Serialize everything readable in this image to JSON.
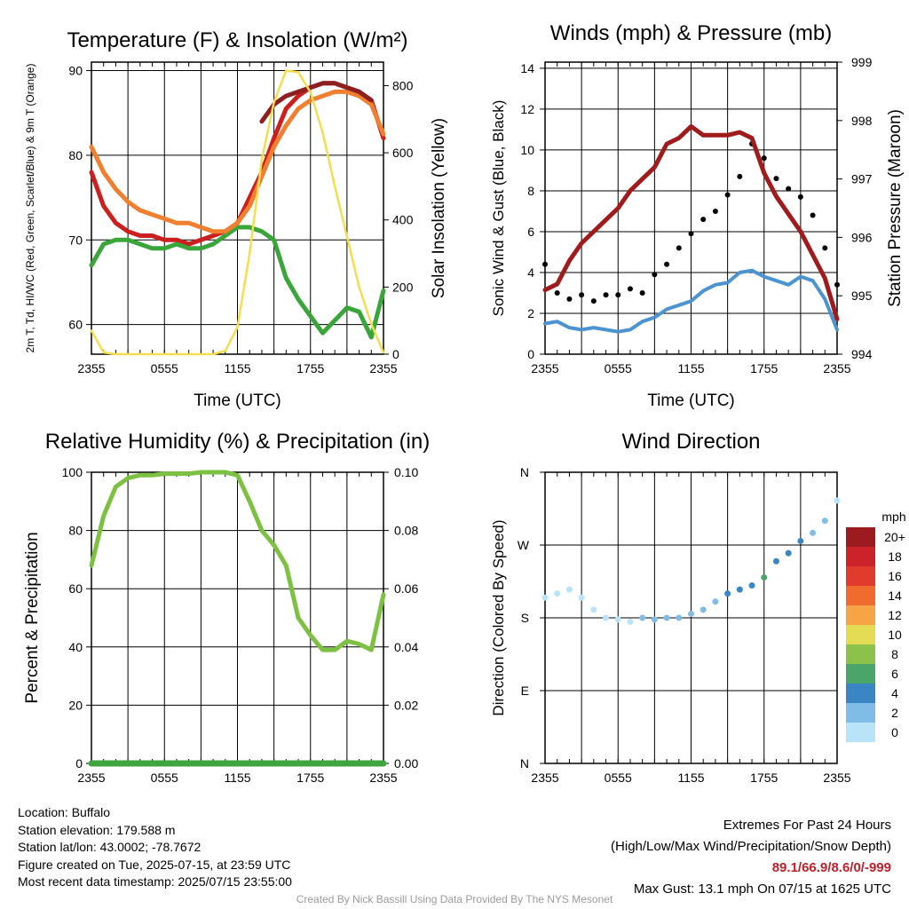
{
  "chart_data": [
    {
      "type": "line",
      "title": "Temperature (F) & Insolation (W/m²)",
      "xlabel": "Time (UTC)",
      "ylabel_left": "2m T, Td, HI/WC (Red, Green, Scarlet/Blue) & 9m T (Orange)",
      "ylabel_right": "Solar Insolation (Yellow)",
      "x_ticks": [
        "2355",
        "0555",
        "1155",
        "1755",
        "2355"
      ],
      "ylim_left": [
        56.5,
        91
      ],
      "yticks_left": [
        60,
        70,
        80,
        90
      ],
      "ylim_right": [
        0,
        870
      ],
      "yticks_right": [
        0,
        200,
        400,
        600,
        800
      ],
      "x_hours": [
        0,
        1,
        2,
        3,
        4,
        5,
        6,
        7,
        8,
        9,
        10,
        11,
        12,
        13,
        14,
        15,
        16,
        17,
        18,
        19,
        20,
        21,
        22,
        23,
        24
      ],
      "series": [
        {
          "name": "2m T",
          "color": "#cc2020",
          "values": [
            78,
            74,
            72,
            71,
            70.5,
            70.5,
            70,
            70,
            69.5,
            70,
            70.5,
            71,
            72,
            75,
            78,
            82,
            85.5,
            87,
            88,
            88.5,
            88.5,
            88,
            87.5,
            86.5,
            82
          ]
        },
        {
          "name": "Td",
          "color": "#3aa63a",
          "values": [
            67,
            69.5,
            70,
            70,
            69.5,
            69,
            69,
            69.5,
            69,
            69,
            69.5,
            70.5,
            71.5,
            71.5,
            71,
            70,
            65.5,
            63,
            61,
            59,
            60.5,
            62,
            61.5,
            58.5,
            64
          ]
        },
        {
          "name": "9m T",
          "color": "#f08030",
          "values": [
            81,
            78,
            76,
            74.5,
            73.5,
            73,
            72.5,
            72,
            72,
            71.5,
            71,
            71,
            72,
            74,
            77.5,
            81,
            83.5,
            85.5,
            86.5,
            87,
            87.5,
            87.5,
            87,
            86,
            82.5
          ]
        },
        {
          "name": "HI/WC",
          "color": "#8e1f1f",
          "values": [
            null,
            null,
            null,
            null,
            null,
            null,
            null,
            null,
            null,
            null,
            null,
            null,
            null,
            null,
            84,
            86,
            87,
            87.5,
            88,
            88.5,
            88.5,
            88,
            87.5,
            86.5,
            null
          ]
        },
        {
          "name": "Solar Insolation",
          "color": "#f5dd50",
          "axis": "right",
          "values": [
            70,
            5,
            0,
            0,
            0,
            0,
            0,
            0,
            0,
            0,
            0,
            10,
            80,
            300,
            580,
            750,
            845,
            840,
            780,
            660,
            500,
            350,
            200,
            90,
            5
          ]
        }
      ]
    },
    {
      "type": "line",
      "title": "Winds (mph) & Pressure (mb)",
      "xlabel": "Time (UTC)",
      "ylabel_left": "Sonic Wind & Gust (Blue, Black)",
      "ylabel_right": "Station Pressure (Maroon)",
      "x_ticks": [
        "2355",
        "0555",
        "1155",
        "1755",
        "2355"
      ],
      "ylim_left": [
        0,
        14.3
      ],
      "yticks_left": [
        0,
        2,
        4,
        6,
        8,
        10,
        12,
        14
      ],
      "ylim_right": [
        994,
        999
      ],
      "yticks_right": [
        994,
        995,
        996,
        997,
        998,
        999
      ],
      "x_hours": [
        0,
        1,
        2,
        3,
        4,
        5,
        6,
        7,
        8,
        9,
        10,
        11,
        12,
        13,
        14,
        15,
        16,
        17,
        18,
        19,
        20,
        21,
        22,
        23,
        24
      ],
      "series": [
        {
          "name": "Sonic Wind",
          "color": "#4b93d1",
          "values": [
            1.5,
            1.6,
            1.3,
            1.2,
            1.3,
            1.2,
            1.1,
            1.2,
            1.6,
            1.8,
            2.2,
            2.4,
            2.6,
            3.1,
            3.4,
            3.5,
            4.0,
            4.1,
            3.8,
            3.6,
            3.4,
            3.8,
            3.6,
            2.7,
            1.2
          ]
        },
        {
          "name": "Gust",
          "color": "#000000",
          "values": [
            4.4,
            3.0,
            2.7,
            2.9,
            2.6,
            2.9,
            2.9,
            3.2,
            3.0,
            3.9,
            4.4,
            5.2,
            5.9,
            6.6,
            7.0,
            7.8,
            8.7,
            10.3,
            9.6,
            8.6,
            8.1,
            7.7,
            6.8,
            5.2,
            3.4
          ]
        },
        {
          "name": "Station Pressure",
          "color": "#a01c1c",
          "axis": "right",
          "values": [
            995.1,
            995.2,
            995.6,
            995.9,
            996.1,
            996.3,
            996.5,
            996.8,
            997.0,
            997.2,
            997.6,
            997.7,
            997.9,
            997.75,
            997.75,
            997.75,
            997.8,
            997.7,
            997.1,
            996.7,
            996.4,
            996.1,
            995.7,
            995.3,
            994.6
          ]
        }
      ]
    },
    {
      "type": "line",
      "title": "Relative Humidity (%) & Precipitation (in)",
      "xlabel": "",
      "ylabel_left": "Percent & Precipitation",
      "x_ticks": [
        "2355",
        "0555",
        "1155",
        "1755",
        "2355"
      ],
      "ylim_left": [
        0,
        100
      ],
      "yticks_left": [
        0,
        20,
        40,
        60,
        80,
        100
      ],
      "ylim_right": [
        0,
        0.1
      ],
      "yticks_right": [
        "0.00",
        "0.02",
        "0.04",
        "0.06",
        "0.08",
        "0.10"
      ],
      "x_hours": [
        0,
        1,
        2,
        3,
        4,
        5,
        6,
        7,
        8,
        9,
        10,
        11,
        12,
        13,
        14,
        15,
        16,
        17,
        18,
        19,
        20,
        21,
        22,
        23,
        24
      ],
      "series": [
        {
          "name": "Relative Humidity",
          "color": "#7dc142",
          "values": [
            68,
            85,
            95,
            98,
            99,
            99,
            99.5,
            99.5,
            99.5,
            100,
            100,
            100,
            99,
            90,
            80,
            75,
            68,
            50,
            44,
            39,
            39,
            42,
            41,
            39,
            58
          ]
        },
        {
          "name": "Precipitation",
          "color": "#3fa63f",
          "axis": "right",
          "values": [
            0,
            0,
            0,
            0,
            0,
            0,
            0,
            0,
            0,
            0,
            0,
            0,
            0,
            0,
            0,
            0,
            0,
            0,
            0,
            0,
            0,
            0,
            0,
            0,
            0
          ]
        }
      ]
    },
    {
      "type": "scatter",
      "title": "Wind Direction",
      "ylabel_left": "Direction (Colored By Speed)",
      "x_ticks": [
        "2355",
        "0555",
        "1155",
        "1755",
        "2355"
      ],
      "y_tick_labels": [
        "N",
        "E",
        "S",
        "W",
        "N"
      ],
      "ylim_degrees": [
        0,
        360
      ],
      "legend": {
        "title": "mph",
        "labels": [
          "20+",
          "18",
          "16",
          "14",
          "12",
          "10",
          "8",
          "6",
          "4",
          "2",
          "0"
        ],
        "colors": [
          "#9b1b1e",
          "#cc2229",
          "#e03b2d",
          "#ef6b2e",
          "#f7a447",
          "#e5dc55",
          "#8cc14a",
          "#4ba56a",
          "#3a86c4",
          "#7fbde6",
          "#b9e3f7"
        ]
      },
      "x_hours": [
        0,
        1,
        2,
        3,
        4,
        5,
        6,
        7,
        8,
        9,
        10,
        11,
        12,
        13,
        14,
        15,
        16,
        17,
        18,
        19,
        20,
        21,
        22,
        23,
        24
      ],
      "direction_deg": [
        205,
        210,
        215,
        205,
        190,
        180,
        178,
        175,
        180,
        178,
        180,
        180,
        185,
        190,
        200,
        210,
        215,
        220,
        230,
        250,
        260,
        275,
        285,
        300,
        325
      ],
      "speed_mph": [
        1,
        1,
        1,
        1,
        1,
        1,
        1,
        1,
        2,
        2,
        2,
        2,
        3,
        3,
        3,
        4,
        5,
        5,
        6,
        5,
        4,
        4,
        3,
        2,
        1
      ]
    }
  ],
  "info_left": {
    "location": "Location: Buffalo",
    "elevation": "Station elevation: 179.588 m",
    "latlon": "Station lat/lon: 43.0002; -78.7672",
    "created": "Figure created on Tue, 2025-07-15, at 23:59 UTC",
    "recent": "Most recent data timestamp: 2025/07/15 23:55:00"
  },
  "info_right": {
    "title": "Extremes For Past 24 Hours",
    "subtitle": "(High/Low/Max Wind/Precipitation/Snow Depth)",
    "values": "89.1/66.9/8.6/0/-999",
    "max_gust": "Max Gust: 13.1 mph On 07/15 at 1625 UTC"
  },
  "credit": "Created By Nick Bassill Using Data Provided By The NYS Mesonet"
}
